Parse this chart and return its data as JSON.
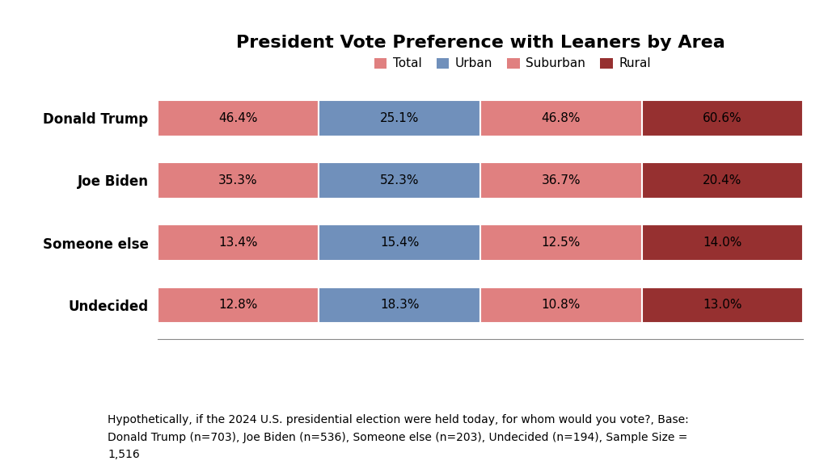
{
  "title": "President Vote Preference with Leaners by Area",
  "categories": [
    "Donald Trump",
    "Joe Biden",
    "Someone else",
    "Undecided"
  ],
  "segments": [
    "Total",
    "Urban",
    "Suburban",
    "Rural"
  ],
  "colors": {
    "Total": "#e08080",
    "Urban": "#7090bb",
    "Suburban": "#e08080",
    "Rural": "#963030"
  },
  "values": {
    "Donald Trump": {
      "Total": 46.4,
      "Urban": 25.1,
      "Suburban": 46.8,
      "Rural": 60.6
    },
    "Joe Biden": {
      "Total": 35.3,
      "Urban": 52.3,
      "Suburban": 36.7,
      "Rural": 20.4
    },
    "Someone else": {
      "Total": 13.4,
      "Urban": 15.4,
      "Suburban": 12.5,
      "Rural": 14.0
    },
    "Undecided": {
      "Total": 12.8,
      "Urban": 18.3,
      "Suburban": 10.8,
      "Rural": 13.0
    }
  },
  "footnote": "Hypothetically, if the 2024 U.S. presidential election were held today, for whom would you vote?, Base:\nDonald Trump (n=703), Joe Biden (n=536), Someone else (n=203), Undecided (n=194), Sample Size =\n1,516",
  "background_color": "#ffffff",
  "bar_height": 0.58,
  "title_fontsize": 16,
  "label_fontsize": 11,
  "tick_fontsize": 12,
  "footnote_fontsize": 10,
  "total_bar_width": 100,
  "n_segments": 4
}
